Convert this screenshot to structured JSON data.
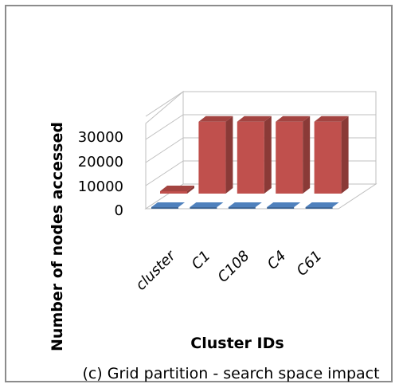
{
  "chart_data": {
    "type": "bar",
    "title": "(c) Grid partition - search space impact",
    "xlabel": "Cluster IDs",
    "ylabel": "Number of nodes accessed",
    "categories": [
      "cluster",
      "C1",
      "C108",
      "C4",
      "C61"
    ],
    "series": [
      {
        "values": [
          0,
          0,
          0,
          0,
          0
        ],
        "color": "#4f81bd"
      },
      {
        "values": [
          800,
          30500,
          30500,
          30500,
          30500
        ],
        "color": "#c0504d"
      }
    ],
    "yticks": [
      "0",
      "10000",
      "20000",
      "30000"
    ],
    "ylim": [
      0,
      40000
    ],
    "style": "3d",
    "grid": true,
    "legend": "none"
  }
}
